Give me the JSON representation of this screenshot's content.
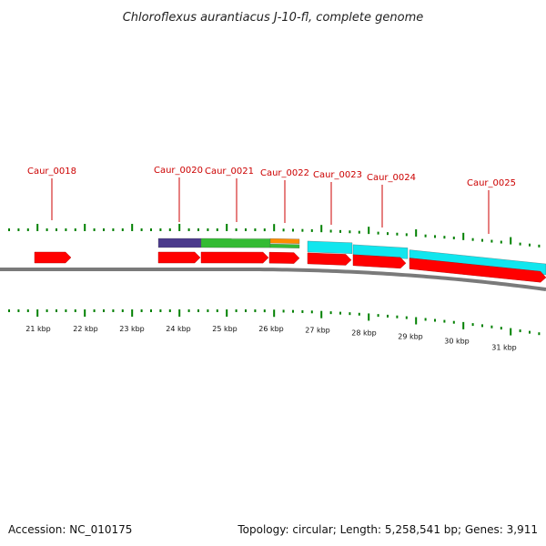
{
  "title": "Chloroflexus aurantiacus J-10-fl, complete genome",
  "footer": {
    "accession": "Accession: NC_010175",
    "summary": "Topology: circular; Length: 5,258,541 bp; Genes: 3,911"
  },
  "scale": {
    "kbp_labels": [
      "21 kbp",
      "22 kbp",
      "23 kbp",
      "24 kbp",
      "25 kbp",
      "26 kbp",
      "27 kbp",
      "28 kbp",
      "29 kbp",
      "30 kbp",
      "31 kbp"
    ]
  },
  "genes": [
    {
      "label": "Caur_0018"
    },
    {
      "label": "Caur_0020"
    },
    {
      "label": "Caur_0021"
    },
    {
      "label": "Caur_0022"
    },
    {
      "label": "Caur_0023"
    },
    {
      "label": "Caur_0024"
    },
    {
      "label": "Caur_0025"
    }
  ],
  "colors": {
    "gene_red": "#ff0000",
    "callout_red": "#cc0000",
    "tick_green": "#008000",
    "purple": "#4b3a8c",
    "green": "#33bb33",
    "orange": "#ff8c00",
    "cyan": "#11e6ee",
    "backbone": "#7a7a7a"
  }
}
